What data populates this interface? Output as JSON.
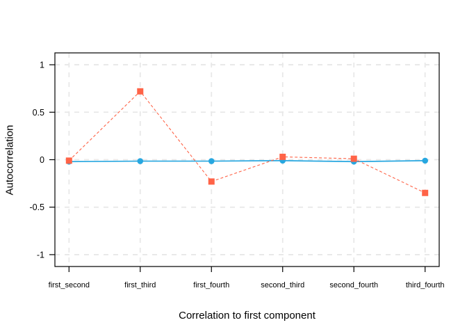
{
  "chart_data": {
    "type": "line",
    "title": "",
    "xlabel": "Correlation to first component",
    "ylabel": "Autocorrelation",
    "categories": [
      "first_second",
      "first_third",
      "first_fourth",
      "second_third",
      "second_fourth",
      "third_fourth"
    ],
    "series": [
      {
        "name": "red-dashed-squares",
        "marker": "square",
        "line_style": "dashed",
        "color": "#FF6347",
        "values": [
          -0.01,
          0.72,
          -0.23,
          0.03,
          0.01,
          -0.35
        ]
      },
      {
        "name": "blue-solid-circles",
        "marker": "circle",
        "line_style": "solid",
        "color": "#27A7E0",
        "values": [
          -0.02,
          -0.015,
          -0.015,
          -0.01,
          -0.02,
          -0.01
        ]
      }
    ],
    "yticks": [
      {
        "label": "1",
        "value": 1
      },
      {
        "label": "0.5",
        "value": 0.5
      },
      {
        "label": "0",
        "value": 0
      },
      {
        "label": "-0.5",
        "value": -0.5
      },
      {
        "label": "-1",
        "value": -1
      }
    ],
    "ylim": [
      -1.125,
      1.125
    ],
    "grid": {
      "visible": true,
      "color": "#E8E8E8",
      "dash": "7 7"
    },
    "axis_color": "#000000",
    "background": "#FFFFFF"
  }
}
